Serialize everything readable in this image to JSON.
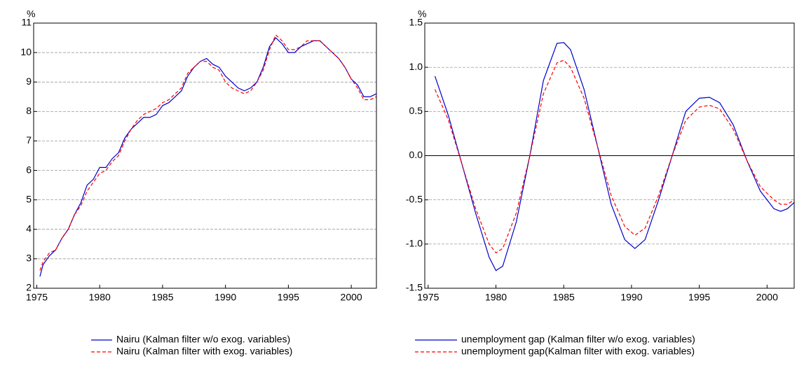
{
  "chart_data": [
    {
      "type": "line",
      "y_unit": "%",
      "xlim": [
        1974.75,
        2002
      ],
      "xticks": [
        1975,
        1980,
        1985,
        1990,
        1995,
        2000
      ],
      "ylim": [
        2,
        11
      ],
      "yticks": [
        2,
        3,
        4,
        5,
        6,
        7,
        8,
        9,
        10,
        11
      ],
      "grid": true,
      "zero_line": false,
      "x": [
        1975.25,
        1975.5,
        1976,
        1976.5,
        1977,
        1977.5,
        1978,
        1978.5,
        1979,
        1979.5,
        1980,
        1980.5,
        1981,
        1981.5,
        1982,
        1982.5,
        1983,
        1983.5,
        1984,
        1984.5,
        1985,
        1985.5,
        1986,
        1986.5,
        1987,
        1987.5,
        1988,
        1988.5,
        1989,
        1989.5,
        1990,
        1990.5,
        1991,
        1991.5,
        1992,
        1992.5,
        1993,
        1993.5,
        1994,
        1994.5,
        1995,
        1995.5,
        1996,
        1996.5,
        1997,
        1997.5,
        1998,
        1998.5,
        1999,
        1999.5,
        2000,
        2000.5,
        2001,
        2001.5,
        2002
      ],
      "series": [
        {
          "name": "Nairu (Kalman filter w/o exog. variables)",
          "color": "#0000cc",
          "dash": false,
          "values": [
            2.4,
            2.8,
            3.1,
            3.3,
            3.7,
            4.0,
            4.5,
            4.9,
            5.5,
            5.7,
            6.1,
            6.1,
            6.4,
            6.6,
            7.1,
            7.4,
            7.6,
            7.8,
            7.8,
            7.9,
            8.2,
            8.3,
            8.5,
            8.7,
            9.2,
            9.5,
            9.7,
            9.8,
            9.6,
            9.5,
            9.2,
            9.0,
            8.8,
            8.7,
            8.8,
            9.0,
            9.5,
            10.2,
            10.5,
            10.3,
            10.0,
            10.0,
            10.2,
            10.3,
            10.4,
            10.4,
            10.2,
            10.0,
            9.8,
            9.5,
            9.1,
            8.9,
            8.5,
            8.5,
            8.6
          ]
        },
        {
          "name": "Nairu (Kalman filter with exog. variables)",
          "color": "#ff0000",
          "dash": true,
          "values": [
            2.6,
            2.9,
            3.2,
            3.3,
            3.7,
            4.0,
            4.5,
            4.8,
            5.3,
            5.6,
            5.9,
            6.0,
            6.3,
            6.5,
            7.0,
            7.4,
            7.7,
            7.9,
            8.0,
            8.1,
            8.3,
            8.4,
            8.6,
            8.8,
            9.3,
            9.5,
            9.7,
            9.7,
            9.5,
            9.4,
            9.0,
            8.8,
            8.7,
            8.6,
            8.7,
            9.0,
            9.4,
            10.1,
            10.6,
            10.4,
            10.1,
            10.1,
            10.2,
            10.4,
            10.4,
            10.4,
            10.2,
            10.0,
            9.8,
            9.5,
            9.1,
            8.8,
            8.4,
            8.4,
            8.5
          ]
        }
      ]
    },
    {
      "type": "line",
      "y_unit": "%",
      "xlim": [
        1974.75,
        2002
      ],
      "xticks": [
        1975,
        1980,
        1985,
        1990,
        1995,
        2000
      ],
      "ylim": [
        -1.5,
        1.5
      ],
      "yticks": [
        -1.5,
        {
          "value": -1.0,
          "label": "-1.0"
        },
        -0.5,
        {
          "value": 0.0,
          "label": "0.0"
        },
        0.5,
        {
          "value": 1.0,
          "label": "1.0"
        },
        1.5
      ],
      "grid": true,
      "zero_line": true,
      "x": [
        1975.5,
        1976.5,
        1977.5,
        1978.5,
        1979.5,
        1980,
        1980.5,
        1981.5,
        1982.5,
        1983.5,
        1984.5,
        1985,
        1985.5,
        1986.5,
        1987.5,
        1988.5,
        1989.5,
        1990.25,
        1991,
        1992,
        1993,
        1994,
        1995,
        1995.75,
        1996.5,
        1997.5,
        1998.5,
        1999.5,
        2000.5,
        2001,
        2001.5,
        2002
      ],
      "series": [
        {
          "name": "unemployment gap (Kalman filter w/o exog. variables)",
          "color": "#0000cc",
          "dash": false,
          "values": [
            0.9,
            0.45,
            -0.1,
            -0.65,
            -1.15,
            -1.3,
            -1.25,
            -0.75,
            0.0,
            0.85,
            1.27,
            1.28,
            1.2,
            0.75,
            0.1,
            -0.55,
            -0.95,
            -1.05,
            -0.95,
            -0.5,
            0.0,
            0.5,
            0.65,
            0.66,
            0.6,
            0.35,
            -0.05,
            -0.4,
            -0.6,
            -0.63,
            -0.6,
            -0.53
          ]
        },
        {
          "name": "unemployment gap(Kalman filter with exog. variables)",
          "color": "#ff0000",
          "dash": true,
          "values": [
            0.75,
            0.4,
            -0.1,
            -0.6,
            -1.0,
            -1.1,
            -1.05,
            -0.65,
            0.0,
            0.7,
            1.05,
            1.08,
            1.0,
            0.65,
            0.1,
            -0.45,
            -0.8,
            -0.9,
            -0.82,
            -0.45,
            0.0,
            0.4,
            0.55,
            0.57,
            0.53,
            0.3,
            -0.05,
            -0.35,
            -0.5,
            -0.55,
            -0.55,
            -0.5
          ]
        }
      ]
    }
  ]
}
